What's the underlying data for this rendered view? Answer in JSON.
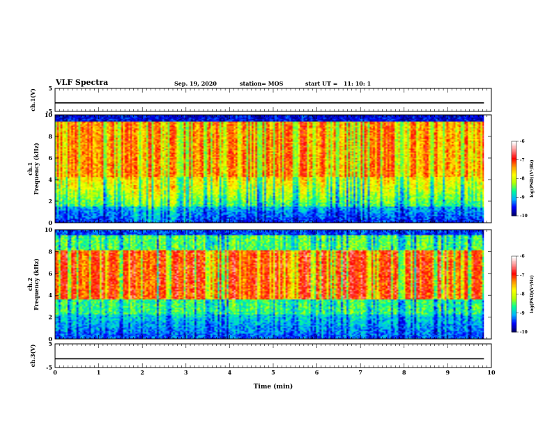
{
  "header": {
    "title": "VLF Spectra",
    "date": "Sep. 19, 2020",
    "station": "station= MOS",
    "start": "start UT =   11: 10: 1"
  },
  "chart_data": [
    {
      "type": "line",
      "panel": "ch1-voltage",
      "ylabel": "ch.1(V)",
      "ylim": [
        -5,
        5
      ],
      "yticks": [
        "5",
        "-5"
      ],
      "series": [
        {
          "x": [
            0,
            9.83
          ],
          "y": [
            -1.3,
            -1.3
          ]
        }
      ]
    },
    {
      "type": "heatmap",
      "panel": "ch1-spectrogram",
      "ylabel": "ch.1\nFrequency (kHz)",
      "ylim": [
        0,
        10
      ],
      "yticks": [
        "0",
        "2",
        "4",
        "6",
        "8",
        "10"
      ],
      "x_extent_min": [
        0,
        9.83
      ],
      "description_profile": "broadband; red/yellow 4-9 kHz with frequent gaps, green/cyan 1-4 kHz, blue below 1.5 kHz, dark band near 10 kHz",
      "colorbar": {
        "label": "log(PSD)(V²/Hz)",
        "range": [
          -10,
          -6
        ],
        "ticks": [
          "-6",
          "-7",
          "-8",
          "-9",
          "-10"
        ]
      }
    },
    {
      "type": "heatmap",
      "panel": "ch2-spectrogram",
      "ylabel": "ch.2\nFrequency (kHz)",
      "ylim": [
        0,
        10
      ],
      "yticks": [
        "0",
        "2",
        "4",
        "6",
        "8",
        "10"
      ],
      "x_extent_min": [
        0,
        9.83
      ],
      "description_profile": "intense red band 3.5-8 kHz, green/cyan 2-3.5 and 8-9.5 kHz, blue below 2 kHz",
      "colorbar": {
        "label": "log(PSD)(V²/Hz)",
        "range": [
          -10,
          -6
        ],
        "ticks": [
          "-6",
          "-7",
          "-8",
          "-9",
          "-10"
        ]
      }
    },
    {
      "type": "line",
      "panel": "ch3-voltage",
      "ylabel": "ch.3(V)",
      "ylim": [
        -5,
        5
      ],
      "yticks": [
        "5",
        "-5"
      ],
      "series": [
        {
          "x": [
            0,
            9.83
          ],
          "y": [
            -1.3,
            -1.3
          ]
        }
      ]
    }
  ],
  "xaxis": {
    "label": "Time (min)",
    "range": [
      0,
      10
    ],
    "ticks": [
      "0",
      "1",
      "2",
      "3",
      "4",
      "5",
      "6",
      "7",
      "8",
      "9",
      "10"
    ]
  },
  "colors": {
    "colormap": [
      "#00006a",
      "#0000ff",
      "#00b4ff",
      "#00ff96",
      "#b4ff00",
      "#ffff00",
      "#ff9600",
      "#ff0000",
      "#ff8a8a",
      "#ffffff"
    ]
  }
}
